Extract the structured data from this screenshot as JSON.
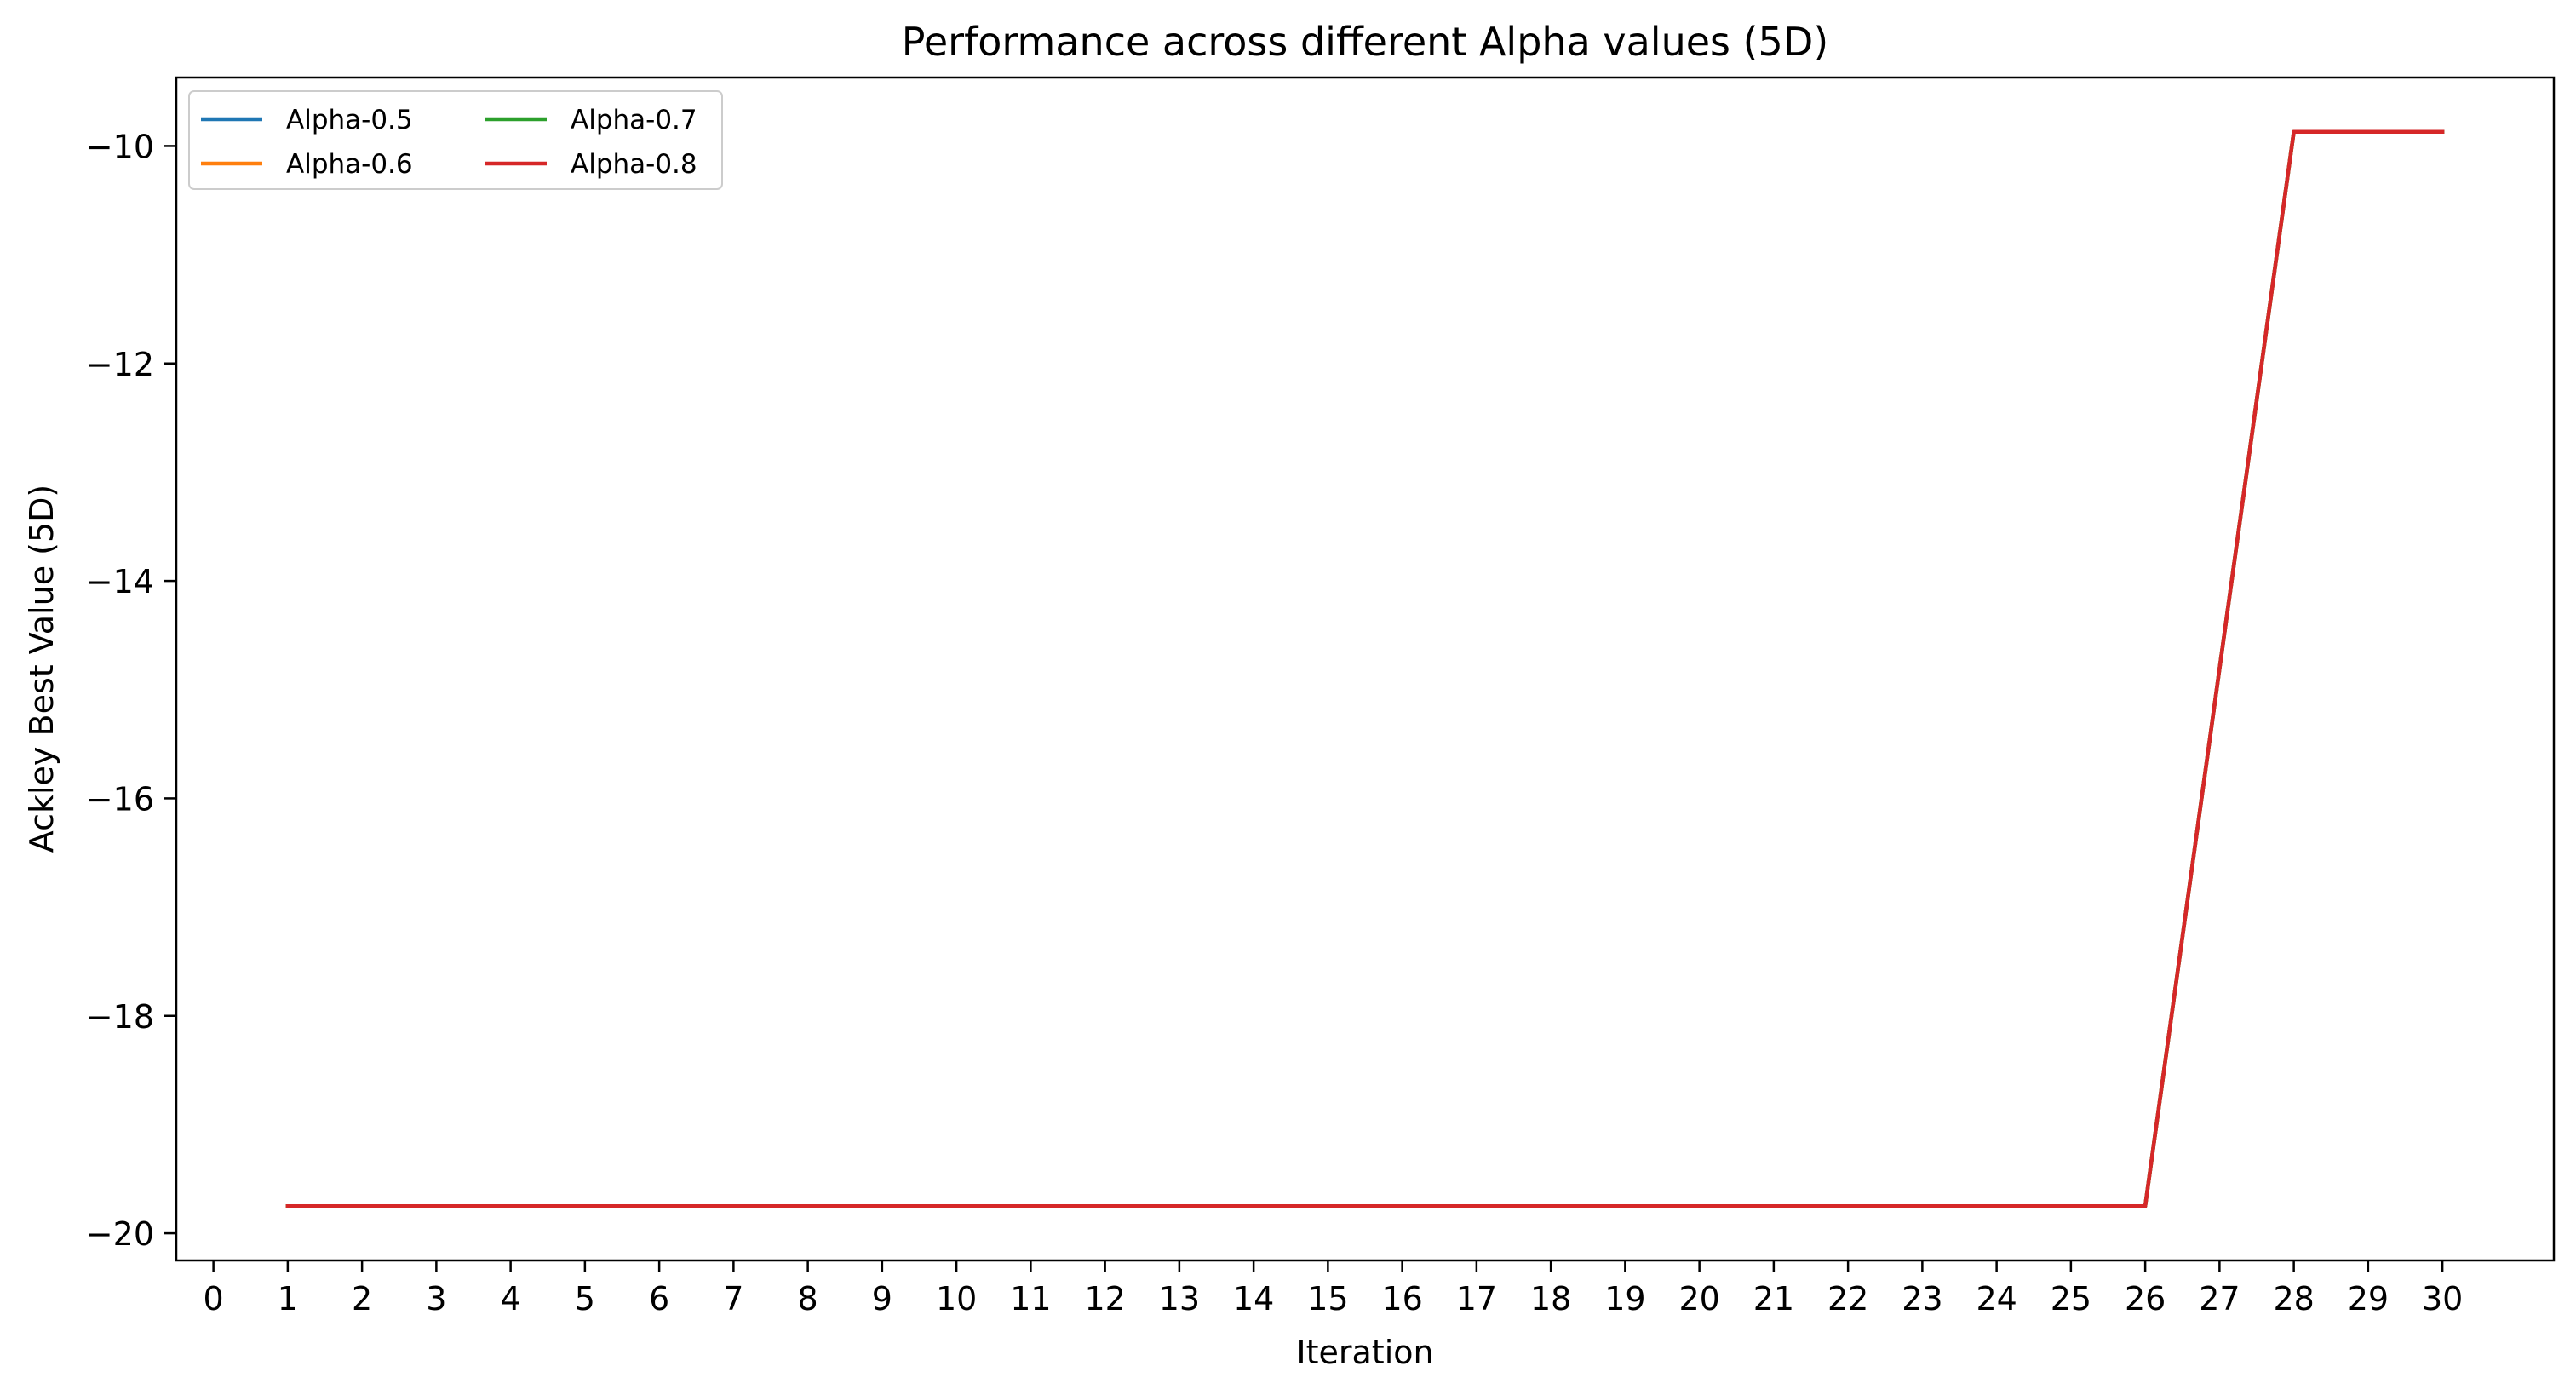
{
  "chart_data": {
    "type": "line",
    "title": "Performance across different Alpha values (5D)",
    "xlabel": "Iteration",
    "ylabel": "Ackley Best Value (5D)",
    "xlim": [
      -0.5,
      31.5
    ],
    "ylim": [
      -20.25,
      -9.37
    ],
    "xticks": [
      0,
      1,
      2,
      3,
      4,
      5,
      6,
      7,
      8,
      9,
      10,
      11,
      12,
      13,
      14,
      15,
      16,
      17,
      18,
      19,
      20,
      21,
      22,
      23,
      24,
      25,
      26,
      27,
      28,
      29,
      30
    ],
    "yticks": [
      -20,
      -18,
      -16,
      -14,
      -12,
      -10
    ],
    "ytick_labels": [
      "−20",
      "−18",
      "−16",
      "−14",
      "−12",
      "−10"
    ],
    "grid": false,
    "legend": {
      "placement": "top-left",
      "columns": 2
    },
    "x": [
      1,
      2,
      3,
      4,
      5,
      6,
      7,
      8,
      9,
      10,
      11,
      12,
      13,
      14,
      15,
      16,
      17,
      18,
      19,
      20,
      21,
      22,
      23,
      24,
      25,
      26,
      28,
      29,
      30
    ],
    "series": [
      {
        "name": "Alpha-0.5",
        "color": "#1f77b4",
        "values": [
          -19.75,
          -19.75,
          -19.75,
          -19.75,
          -19.75,
          -19.75,
          -19.75,
          -19.75,
          -19.75,
          -19.75,
          -19.75,
          -19.75,
          -19.75,
          -19.75,
          -19.75,
          -19.75,
          -19.75,
          -19.75,
          -19.75,
          -19.75,
          -19.75,
          -19.75,
          -19.75,
          -19.75,
          -19.75,
          -19.75,
          -9.87,
          -9.87,
          -9.87
        ]
      },
      {
        "name": "Alpha-0.6",
        "color": "#ff7f0e",
        "values": [
          -19.75,
          -19.75,
          -19.75,
          -19.75,
          -19.75,
          -19.75,
          -19.75,
          -19.75,
          -19.75,
          -19.75,
          -19.75,
          -19.75,
          -19.75,
          -19.75,
          -19.75,
          -19.75,
          -19.75,
          -19.75,
          -19.75,
          -19.75,
          -19.75,
          -19.75,
          -19.75,
          -19.75,
          -19.75,
          -19.75,
          -9.87,
          -9.87,
          -9.87
        ]
      },
      {
        "name": "Alpha-0.7",
        "color": "#2ca02c",
        "values": [
          -19.75,
          -19.75,
          -19.75,
          -19.75,
          -19.75,
          -19.75,
          -19.75,
          -19.75,
          -19.75,
          -19.75,
          -19.75,
          -19.75,
          -19.75,
          -19.75,
          -19.75,
          -19.75,
          -19.75,
          -19.75,
          -19.75,
          -19.75,
          -19.75,
          -19.75,
          -19.75,
          -19.75,
          -19.75,
          -19.75,
          -9.87,
          -9.87,
          -9.87
        ]
      },
      {
        "name": "Alpha-0.8",
        "color": "#d62728",
        "values": [
          -19.75,
          -19.75,
          -19.75,
          -19.75,
          -19.75,
          -19.75,
          -19.75,
          -19.75,
          -19.75,
          -19.75,
          -19.75,
          -19.75,
          -19.75,
          -19.75,
          -19.75,
          -19.75,
          -19.75,
          -19.75,
          -19.75,
          -19.75,
          -19.75,
          -19.75,
          -19.75,
          -19.75,
          -19.75,
          -19.75,
          -9.87,
          -9.87,
          -9.87
        ]
      }
    ]
  }
}
